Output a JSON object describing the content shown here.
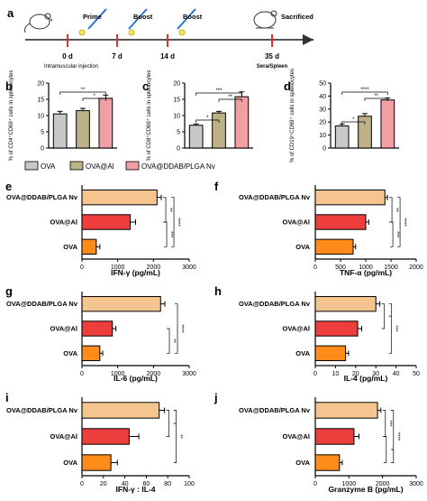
{
  "panel_letters": [
    "a",
    "b",
    "c",
    "d",
    "e",
    "f",
    "g",
    "h",
    "i",
    "j"
  ],
  "timeline": {
    "events": [
      {
        "label": "Prime",
        "day": "0 d",
        "note": "Intramuscular injection"
      },
      {
        "label": "Boost",
        "day": "7 d",
        "note": ""
      },
      {
        "label": "Boost",
        "day": "14 d",
        "note": ""
      },
      {
        "label": "Sacrificed",
        "day": "35 d",
        "note": "Sera/Spleen"
      }
    ]
  },
  "legend": {
    "items": [
      {
        "label": "OVA",
        "color": "#c8c8c8"
      },
      {
        "label": "OVA@Al",
        "color": "#bdb287"
      },
      {
        "label": "OVA@DDAB/PLGA Nv",
        "color": "#f0a0a4"
      }
    ]
  },
  "colors": {
    "bars_top": [
      "#c8c8c8",
      "#bdb287",
      "#f0a0a4"
    ],
    "bars_bottom": [
      "#ff8c1a",
      "#ee3d3d",
      "#f4c58f"
    ]
  },
  "chart_data": [
    {
      "panel": "b",
      "type": "bar",
      "categories": [
        "OVA",
        "OVA@Al",
        "OVA@DDAB/PLGA Nv"
      ],
      "values": [
        10.5,
        11.5,
        15.3
      ],
      "errors": [
        0.8,
        0.7,
        1.0
      ],
      "xlabel": "",
      "ylabel": "% of CD4⁺CD69⁺ cells in splenocytes",
      "ylim": [
        0,
        20
      ],
      "yticks": [
        "0",
        "5",
        "10",
        "15",
        "20"
      ],
      "significance": [
        "**",
        "*"
      ]
    },
    {
      "panel": "c",
      "type": "bar",
      "categories": [
        "OVA",
        "OVA@Al",
        "OVA@DDAB/PLGA Nv"
      ],
      "values": [
        7,
        10.8,
        15.8
      ],
      "errors": [
        0.4,
        0.5,
        1.5
      ],
      "xlabel": "",
      "ylabel": "% of CD8⁺CD69⁺ cells in splenocytes",
      "ylim": [
        0,
        20
      ],
      "yticks": [
        "0",
        "5",
        "10",
        "15",
        "20"
      ],
      "significance": [
        "*",
        "***",
        "**"
      ]
    },
    {
      "panel": "d",
      "type": "bar",
      "categories": [
        "OVA",
        "OVA@Al",
        "OVA@DDAB/PLGA Nv"
      ],
      "values": [
        17,
        24.5,
        37
      ],
      "errors": [
        1.5,
        2,
        1.5
      ],
      "xlabel": "",
      "ylabel": "% of CD19⁺CD69⁺ cells in splenocytes",
      "ylim": [
        0,
        50
      ],
      "yticks": [
        "0",
        "10",
        "20",
        "30",
        "40",
        "50"
      ],
      "significance": [
        "*",
        "****",
        "**"
      ]
    },
    {
      "panel": "e",
      "type": "bar",
      "categories": [
        "OVA@DDAB/PLGA Nv",
        "OVA@Al",
        "OVA"
      ],
      "values": [
        2100,
        1350,
        400
      ],
      "errors": [
        120,
        150,
        100
      ],
      "xlabel": "IFN-γ (pg/mL)",
      "ylabel": "",
      "xlim": [
        0,
        3000
      ],
      "xticks": [
        "0",
        "1000",
        "2000",
        "3000"
      ],
      "significance": [
        "**",
        "****",
        "***"
      ]
    },
    {
      "panel": "f",
      "type": "bar",
      "categories": [
        "OVA@DDAB/PLGA Nv",
        "OVA@Al",
        "OVA"
      ],
      "values": [
        1380,
        1000,
        750
      ],
      "errors": [
        50,
        60,
        50
      ],
      "xlabel": "TNF-α (pg/mL)",
      "ylabel": "",
      "xlim": [
        0,
        2000
      ],
      "xticks": [
        "0",
        "500",
        "1000",
        "1500",
        "2000"
      ],
      "significance": [
        "**",
        "****",
        "***"
      ]
    },
    {
      "panel": "g",
      "type": "bar",
      "categories": [
        "OVA@DDAB/PLGA Nv",
        "OVA@Al",
        "OVA"
      ],
      "values": [
        2200,
        850,
        500
      ],
      "errors": [
        120,
        100,
        80
      ],
      "xlabel": "IL-6 (pg/mL)",
      "ylabel": "",
      "xlim": [
        0,
        3000
      ],
      "xticks": [
        "0",
        "1000",
        "2000",
        "3000"
      ],
      "significance": [
        "****",
        "**"
      ]
    },
    {
      "panel": "h",
      "type": "bar",
      "categories": [
        "OVA@DDAB/PLGA Nv",
        "OVA@Al",
        "OVA"
      ],
      "values": [
        30,
        21,
        15
      ],
      "errors": [
        2,
        2,
        1.5
      ],
      "xlabel": "IL-4 (pg/mL)",
      "ylabel": "",
      "xlim": [
        0,
        50
      ],
      "xticks": [
        "0",
        "10",
        "20",
        "30",
        "40",
        "50"
      ],
      "significance": [
        "*",
        "***"
      ]
    },
    {
      "panel": "i",
      "type": "bar",
      "categories": [
        "OVA@DDAB/PLGA Nv",
        "OVA@Al",
        "OVA"
      ],
      "values": [
        72,
        44,
        27
      ],
      "errors": [
        5,
        9,
        6
      ],
      "xlabel": "IFN-γ : IL-4",
      "ylabel": "",
      "xlim": [
        0,
        100
      ],
      "xticks": [
        "0",
        "20",
        "40",
        "60",
        "80",
        "100"
      ],
      "significance": [
        "*",
        "**"
      ]
    },
    {
      "panel": "j",
      "type": "bar",
      "categories": [
        "OVA@DDAB/PLGA Nv",
        "OVA@Al",
        "OVA"
      ],
      "values": [
        1850,
        1150,
        720
      ],
      "errors": [
        100,
        150,
        80
      ],
      "xlabel": "Granzyme B (pg/mL)",
      "ylabel": "",
      "xlim": [
        0,
        3000
      ],
      "xticks": [
        "0",
        "1000",
        "2000",
        "3000"
      ],
      "significance": [
        "***",
        "****",
        "*"
      ]
    }
  ]
}
